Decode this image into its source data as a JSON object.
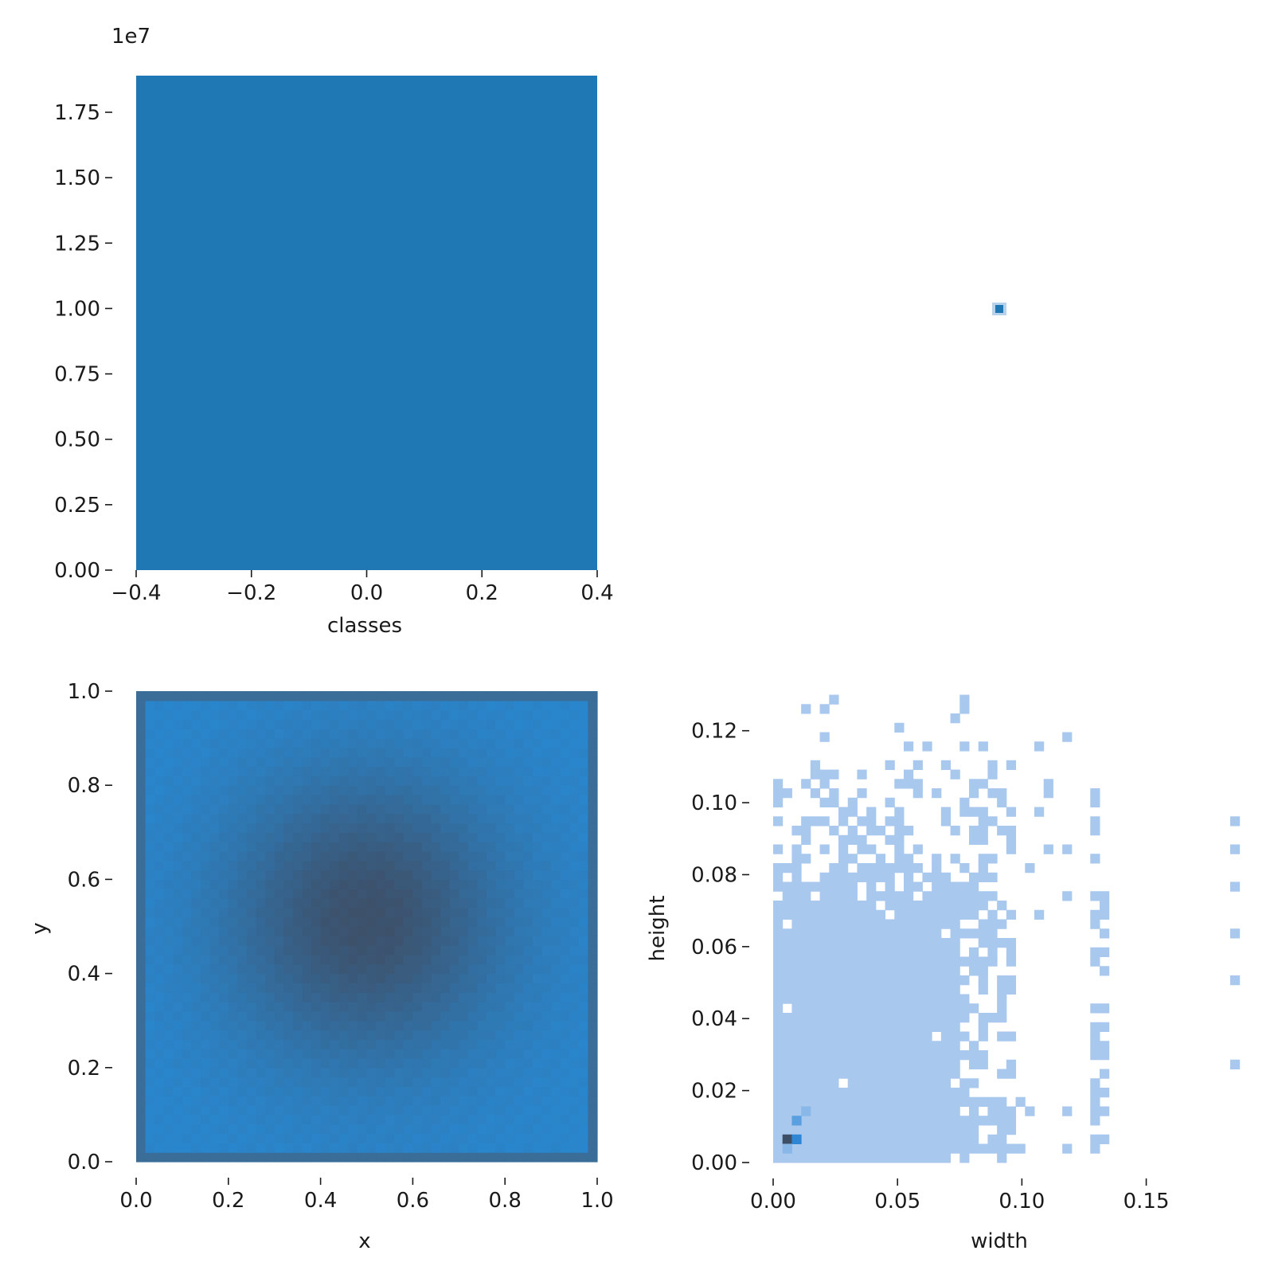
{
  "chart_data": [
    {
      "id": "classes",
      "type": "bar",
      "xlabel": "classes",
      "ylabel": "",
      "categories": [
        0
      ],
      "values": [
        18900000
      ],
      "bar_range": [
        -0.4,
        0.4
      ],
      "xlim": [
        -0.4,
        0.4
      ],
      "ylim": [
        0,
        18900000
      ],
      "offset_text": "1e7",
      "x_ticks": [
        -0.4,
        -0.2,
        0.0,
        0.2,
        0.4
      ],
      "x_tick_labels": [
        "−0.4",
        "−0.2",
        "0.0",
        "0.2",
        "0.4"
      ],
      "y_ticks": [
        0,
        2500000,
        5000000,
        7500000,
        10000000,
        12500000,
        15000000,
        17500000
      ],
      "y_tick_labels": [
        "0.00",
        "0.25",
        "0.50",
        "0.75",
        "1.00",
        "1.25",
        "1.50",
        "1.75"
      ],
      "color": "#1f77b4",
      "grid": false,
      "legend": false
    },
    {
      "id": "classes-vs-classes",
      "type": "heatmap",
      "xlabel": "",
      "ylabel": "",
      "cells": [
        {
          "x": 0,
          "y": 0,
          "density": 1
        }
      ],
      "color": "#1f77b4",
      "grid": false,
      "legend": false
    },
    {
      "id": "x-y",
      "type": "heatmap",
      "xlabel": "x",
      "ylabel": "y",
      "xlim": [
        0,
        1
      ],
      "ylim": [
        0,
        1
      ],
      "bins": 50,
      "x_ticks": [
        0.0,
        0.2,
        0.4,
        0.6,
        0.8,
        1.0
      ],
      "x_tick_labels": [
        "0.0",
        "0.2",
        "0.4",
        "0.6",
        "0.8",
        "1.0"
      ],
      "y_ticks": [
        0.0,
        0.2,
        0.4,
        0.6,
        0.8,
        1.0
      ],
      "y_tick_labels": [
        "0.0",
        "0.2",
        "0.4",
        "0.6",
        "0.8",
        "1.0"
      ],
      "density": {
        "peak_x": 0.5,
        "peak_y": 0.52,
        "peak": "high",
        "corners": "low",
        "edge_band": "medium"
      },
      "colors": {
        "low": "#2a86cc",
        "high": "#3d516b",
        "edge": "#3a6d98"
      },
      "grid": false,
      "legend": false
    },
    {
      "id": "width-height",
      "type": "heatmap",
      "xlabel": "width",
      "ylabel": "height",
      "xlim": [
        0,
        0.186
      ],
      "ylim": [
        0,
        0.131
      ],
      "x_ticks": [
        0.0,
        0.05,
        0.1,
        0.15
      ],
      "x_tick_labels": [
        "0.00",
        "0.05",
        "0.10",
        "0.15"
      ],
      "y_ticks": [
        0.0,
        0.02,
        0.04,
        0.06,
        0.08,
        0.1,
        0.12
      ],
      "y_tick_labels": [
        "0.00",
        "0.02",
        "0.04",
        "0.06",
        "0.08",
        "0.10",
        "0.12"
      ],
      "dense_region": {
        "width": [
          0,
          0.075
        ],
        "height": [
          0,
          0.073
        ]
      },
      "hotspots": [
        {
          "width": 0.0055,
          "height": 0.0065,
          "level": "highest"
        },
        {
          "width": 0.0095,
          "height": 0.0075,
          "level": "high"
        },
        {
          "width": 0.0095,
          "height": 0.0115,
          "level": "medium"
        },
        {
          "width": 0.0135,
          "height": 0.0135,
          "level": "low"
        },
        {
          "width": 0.0055,
          "height": 0.004,
          "level": "low"
        }
      ],
      "colors": {
        "base": "#a9c8ee",
        "medium": "#5aa0e0",
        "high": "#2e86d4",
        "highest": "#3d4f66"
      },
      "grid": false,
      "legend": false
    }
  ]
}
